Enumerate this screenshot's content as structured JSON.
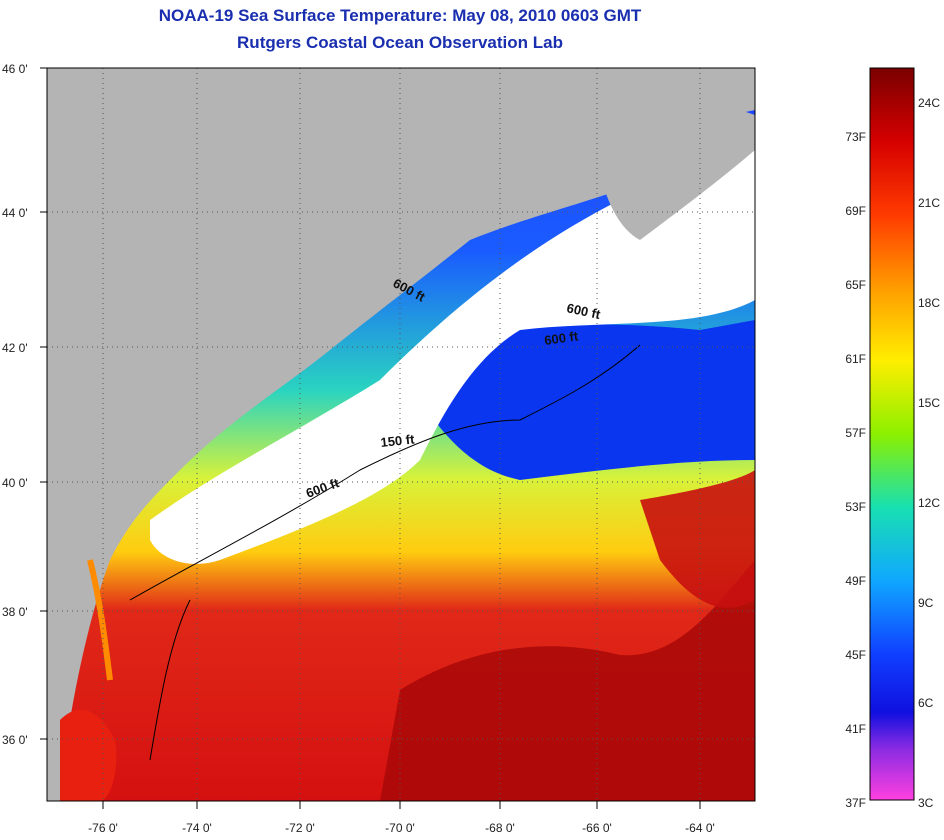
{
  "title": "NOAA-19 Sea Surface Temperature:  May 08, 2010 0603 GMT",
  "subtitle": "Rutgers Coastal Ocean Observation Lab",
  "map": {
    "lon_labels": [
      "-76 0'",
      "-74 0'",
      "-72 0'",
      "-70 0'",
      "-68 0'",
      "-66 0'",
      "-64 0'"
    ],
    "lat_labels": [
      "46 0'",
      "44 0'",
      "42 0'",
      "40 0'",
      "38 0'",
      "36 0'"
    ],
    "contours": [
      {
        "label": "600 ft"
      },
      {
        "label": "600 ft"
      },
      {
        "label": "600 ft"
      },
      {
        "label": "150 ft"
      },
      {
        "label": "600 ft"
      }
    ],
    "colors": {
      "land": "#b4b4b4",
      "cloud": "#ffffff",
      "warm": "#d81010",
      "cold": "#0a36f0"
    }
  },
  "colorbar": {
    "fahrenheit": [
      "73F",
      "69F",
      "65F",
      "61F",
      "57F",
      "53F",
      "49F",
      "45F",
      "41F",
      "37F"
    ],
    "celsius": [
      "24C",
      "21C",
      "18C",
      "15C",
      "12C",
      "9C",
      "6C",
      "3C"
    ]
  }
}
